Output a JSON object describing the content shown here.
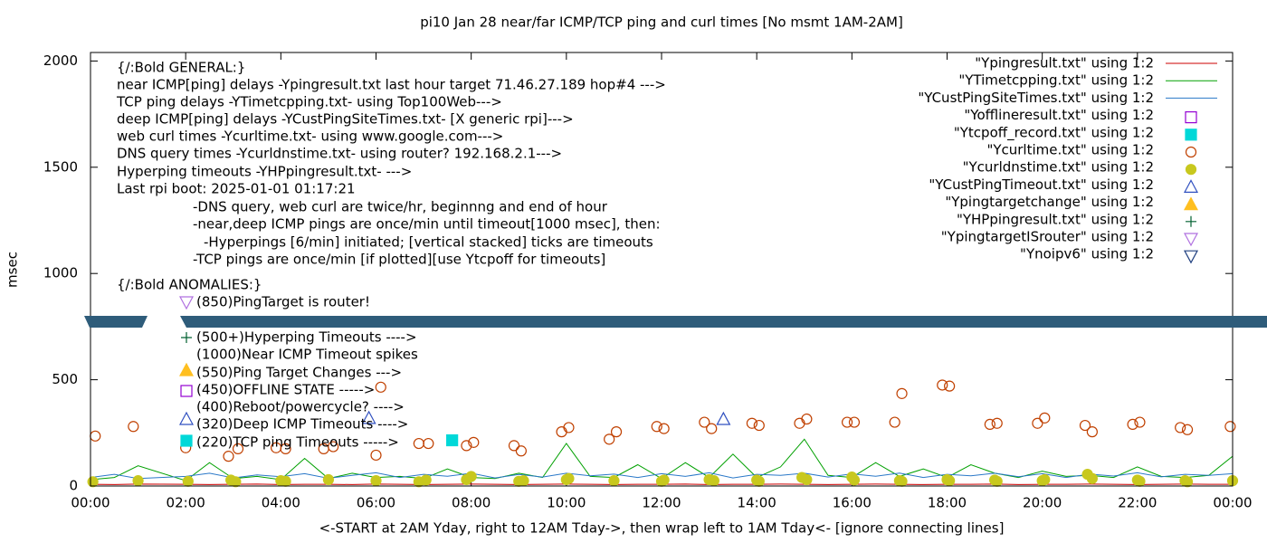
{
  "chart_data": {
    "type": "line",
    "title": "pi10 Jan 28  near/far ICMP/TCP ping and curl times [No msmt 1AM-2AM]",
    "xlabel": "<-START at 2AM Yday, right to 12AM Tday->, then wrap left to 1AM Tday<- [ignore connecting lines]",
    "ylabel": "msec",
    "xlim": [
      0,
      24
    ],
    "ylim": [
      0,
      2040
    ],
    "xticks": [
      {
        "value": 0,
        "label": "00:00"
      },
      {
        "value": 2,
        "label": "02:00"
      },
      {
        "value": 4,
        "label": "04:00"
      },
      {
        "value": 6,
        "label": "06:00"
      },
      {
        "value": 8,
        "label": "08:00"
      },
      {
        "value": 10,
        "label": "10:00"
      },
      {
        "value": 12,
        "label": "12:00"
      },
      {
        "value": 14,
        "label": "14:00"
      },
      {
        "value": 16,
        "label": "16:00"
      },
      {
        "value": 18,
        "label": "18:00"
      },
      {
        "value": 20,
        "label": "20:00"
      },
      {
        "value": 22,
        "label": "22:00"
      },
      {
        "value": 24,
        "label": "00:00"
      }
    ],
    "yticks": [
      0,
      500,
      1000,
      1500,
      2000
    ],
    "legend_position": "top-right",
    "annotations": [
      "{/:Bold GENERAL:}",
      "near ICMP[ping] delays -Ypingresult.txt last hour target 71.46.27.189 hop#4 --->",
      "TCP ping delays -YTimetcpping.txt- using Top100Web--->",
      "deep ICMP[ping] delays -YCustPingSiteTimes.txt- [X generic rpi]--->",
      "web curl times -Ycurltime.txt- using www.google.com--->",
      "DNS query times -Ycurldnstime.txt- using router? 192.168.2.1--->",
      "Hyperping timeouts -YHPpingresult.txt- --->",
      "Last rpi boot: 2025-01-01 01:17:21",
      "-DNS query, web curl are twice/hr, beginnng and end of hour",
      "-near,deep ICMP pings are once/min until timeout[1000 msec], then:",
      "-Hyperpings [6/min] initiated; [vertical stacked] ticks are timeouts",
      "-TCP pings are once/min [if plotted][use Ytcpoff for timeouts]",
      "{/:Bold ANOMALIES:}",
      "(850)PingTarget is router!",
      "(500+)Hyperping Timeouts ---->",
      "(1000)Near ICMP Timeout spikes",
      "(550)Ping Target Changes --->",
      "(450)OFFLINE STATE ----->",
      "(400)Reboot/powercycle? ---->",
      "(320)Deep ICMP Timeouts ---->",
      "(220)TCP ping Timeouts ----->"
    ],
    "series": [
      {
        "name": "\"Ypingresult.txt\" using 1:2",
        "color": "#cc0000",
        "marker": "line",
        "x": [
          0,
          0.5,
          1,
          2,
          2.5,
          3,
          3.5,
          4,
          4.5,
          5,
          5.5,
          6,
          6.5,
          7,
          7.5,
          8,
          8.5,
          9,
          9.5,
          10,
          10.5,
          11,
          11.5,
          12,
          12.5,
          13,
          13.5,
          14,
          14.5,
          15,
          15.5,
          16,
          16.5,
          17,
          17.5,
          18,
          18.5,
          19,
          19.5,
          20,
          20.5,
          21,
          21.5,
          22,
          22.5,
          23,
          23.5,
          24
        ],
        "values": [
          8,
          7,
          9,
          8,
          7,
          8,
          9,
          7,
          8,
          8,
          7,
          9,
          8,
          7,
          8,
          9,
          8,
          7,
          8,
          9,
          8,
          7,
          8,
          8,
          9,
          7,
          8,
          8,
          9,
          8,
          7,
          8,
          9,
          8,
          7,
          8,
          8,
          9,
          7,
          8,
          8,
          9,
          8,
          7,
          8,
          9,
          8,
          8
        ]
      },
      {
        "name": "\"YTimetcpping.txt\" using 1:2",
        "color": "#00a000",
        "marker": "line",
        "x": [
          0,
          0.5,
          1,
          2,
          2.5,
          3,
          3.5,
          4,
          4.5,
          5,
          5.5,
          6,
          6.5,
          7,
          7.5,
          8,
          8.5,
          9,
          9.5,
          10,
          10.5,
          11,
          11.5,
          12,
          12.5,
          13,
          13.5,
          14,
          14.5,
          15,
          15.5,
          16,
          16.5,
          17,
          17.5,
          18,
          18.5,
          19,
          19.5,
          20,
          20.5,
          21,
          21.5,
          22,
          22.5,
          23,
          23.5,
          24
        ],
        "values": [
          30,
          40,
          95,
          25,
          110,
          35,
          45,
          30,
          130,
          35,
          60,
          40,
          45,
          35,
          80,
          40,
          35,
          60,
          40,
          200,
          45,
          40,
          100,
          35,
          110,
          40,
          150,
          40,
          90,
          220,
          50,
          40,
          110,
          45,
          80,
          40,
          100,
          60,
          40,
          70,
          45,
          50,
          40,
          90,
          45,
          40,
          50,
          140
        ]
      },
      {
        "name": "\"YCustPingSiteTimes.txt\" using 1:2",
        "color": "#2a78c8",
        "marker": "line",
        "x": [
          0,
          0.5,
          1,
          2,
          2.5,
          3,
          3.5,
          4,
          4.5,
          5,
          5.5,
          6,
          6.5,
          7,
          7.5,
          8,
          8.5,
          9,
          9.5,
          10,
          10.5,
          11,
          11.5,
          12,
          12.5,
          13,
          13.5,
          14,
          14.5,
          15,
          15.5,
          16,
          16.5,
          17,
          17.5,
          18,
          18.5,
          19,
          19.5,
          20,
          20.5,
          21,
          21.5,
          22,
          22.5,
          23,
          23.5,
          24
        ],
        "values": [
          40,
          55,
          35,
          45,
          60,
          38,
          52,
          44,
          58,
          36,
          50,
          62,
          40,
          55,
          46,
          60,
          38,
          54,
          42,
          60,
          48,
          56,
          40,
          58,
          45,
          62,
          38,
          55,
          50,
          60,
          42,
          57,
          46,
          61,
          40,
          55,
          48,
          60,
          44,
          58,
          40,
          56,
          47,
          62,
          43,
          55,
          50,
          58
        ]
      },
      {
        "name": "\"Yofflineresult.txt\" using 1:2",
        "color": "#9400d3",
        "marker": "square-open",
        "x": [],
        "values": []
      },
      {
        "name": "\"Ytcpoff_record.txt\" using 1:2",
        "color": "#00d8d8",
        "marker": "square",
        "x": [
          7.6
        ],
        "values": [
          215
        ]
      },
      {
        "name": "\"Ycurltime.txt\" using 1:2",
        "color": "#c04000",
        "marker": "circle-open",
        "x": [
          0.1,
          0.9,
          2.0,
          2.9,
          3.1,
          3.9,
          4.1,
          4.9,
          5.1,
          6.0,
          6.1,
          6.9,
          7.1,
          7.9,
          8.05,
          8.9,
          9.05,
          9.9,
          10.05,
          10.9,
          11.05,
          11.9,
          12.05,
          12.9,
          13.05,
          13.9,
          14.05,
          14.9,
          15.05,
          15.9,
          16.05,
          16.9,
          17.05,
          17.9,
          18.05,
          18.9,
          19.05,
          19.9,
          20.05,
          20.9,
          21.05,
          21.9,
          22.05,
          22.9,
          23.05,
          23.95
        ],
        "values": [
          235,
          280,
          180,
          140,
          175,
          180,
          175,
          175,
          185,
          145,
          465,
          200,
          200,
          190,
          205,
          190,
          165,
          255,
          275,
          220,
          255,
          280,
          270,
          300,
          270,
          295,
          285,
          295,
          315,
          300,
          300,
          300,
          435,
          475,
          470,
          290,
          295,
          295,
          320,
          285,
          255,
          290,
          300,
          275,
          265,
          280
        ]
      },
      {
        "name": "\"Ycurldnstime.txt\" using 1:2",
        "color": "#c8c81e",
        "marker": "circle",
        "x": [
          0.05,
          1.0,
          2.05,
          2.95,
          3.05,
          4.0,
          4.1,
          5.0,
          6.0,
          6.9,
          7.05,
          7.9,
          8.0,
          9.0,
          9.1,
          10.0,
          10.05,
          11.0,
          12.0,
          12.05,
          13.0,
          13.1,
          14.0,
          14.05,
          14.95,
          15.05,
          16.0,
          16.05,
          17.0,
          17.05,
          18.0,
          18.05,
          19.0,
          19.05,
          20.0,
          20.05,
          20.95,
          21.05,
          22.0,
          22.05,
          23.0,
          23.05,
          24.0
        ],
        "values": [
          20,
          25,
          22,
          28,
          20,
          25,
          22,
          30,
          25,
          20,
          28,
          30,
          45,
          22,
          25,
          30,
          35,
          25,
          22,
          28,
          30,
          25,
          28,
          22,
          40,
          30,
          42,
          28,
          25,
          22,
          30,
          25,
          28,
          22,
          25,
          30,
          55,
          35,
          28,
          22,
          25,
          20,
          25
        ]
      },
      {
        "name": "\"YCustPingTimeout.txt\" using 1:2",
        "color": "#3050c0",
        "marker": "triangle-open",
        "x": [
          5.85,
          13.3
        ],
        "values": [
          320,
          315
        ]
      },
      {
        "name": "\"Ypingtargetchange\" using 1:2",
        "color": "#ffbf20",
        "marker": "triangle",
        "x": [],
        "values": []
      },
      {
        "name": "\"YHPpingresult.txt\" using 1:2",
        "color": "#006030",
        "marker": "plus",
        "x": [],
        "values": []
      },
      {
        "name": "\"YpingtargetISrouter\" using 1:2",
        "color": "#b070e0",
        "marker": "triangle-down-open",
        "x": [],
        "values": []
      },
      {
        "name": "\"Ynoipv6\" using 1:2",
        "color": "#204080",
        "marker": "triangle-down-open",
        "x": [],
        "values": []
      }
    ]
  }
}
